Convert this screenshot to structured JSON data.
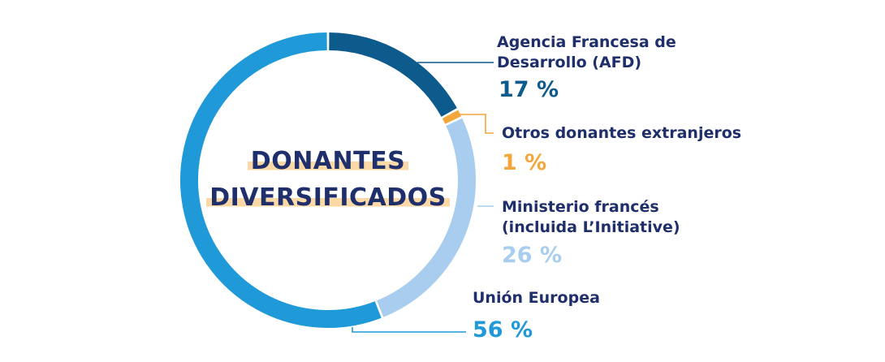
{
  "chart_data": {
    "type": "pie",
    "variant": "donut",
    "title": "DONANTES DIVERSIFICADOS",
    "title_lines": [
      "DONANTES",
      "DIVERSIFICADOS"
    ],
    "categories": [
      "Agencia Francesa de Desarrollo (AFD)",
      "Otros donantes extranjeros",
      "Ministerio francés (incluida L'Initiative)",
      "Unión Europea"
    ],
    "values": [
      17,
      1,
      26,
      56
    ],
    "unit": "%",
    "legend_position": "right",
    "segments": [
      {
        "label_lines": [
          "Agencia Francesa de",
          "Desarrollo (AFD)"
        ],
        "value": 17,
        "value_label": "17 %",
        "color": "#0d5a8c"
      },
      {
        "label_lines": [
          "Otros donantes extranjeros"
        ],
        "value": 1,
        "value_label": "1 %",
        "color": "#f2a63b"
      },
      {
        "label_lines": [
          "Ministerio francés",
          "(incluida L’Initiative)"
        ],
        "value": 26,
        "value_label": "26 %",
        "color": "#a9cdee"
      },
      {
        "label_lines": [
          "Unión Europea"
        ],
        "value": 56,
        "value_label": "56 %",
        "color": "#1f99d8"
      }
    ]
  },
  "colors": {
    "text": "#1e2f6b",
    "highlight": "#fbd9a6",
    "afd": "#0d5a8c",
    "otros": "#f2a63b",
    "ministerio": "#a9cdee",
    "ue": "#1f99d8"
  }
}
